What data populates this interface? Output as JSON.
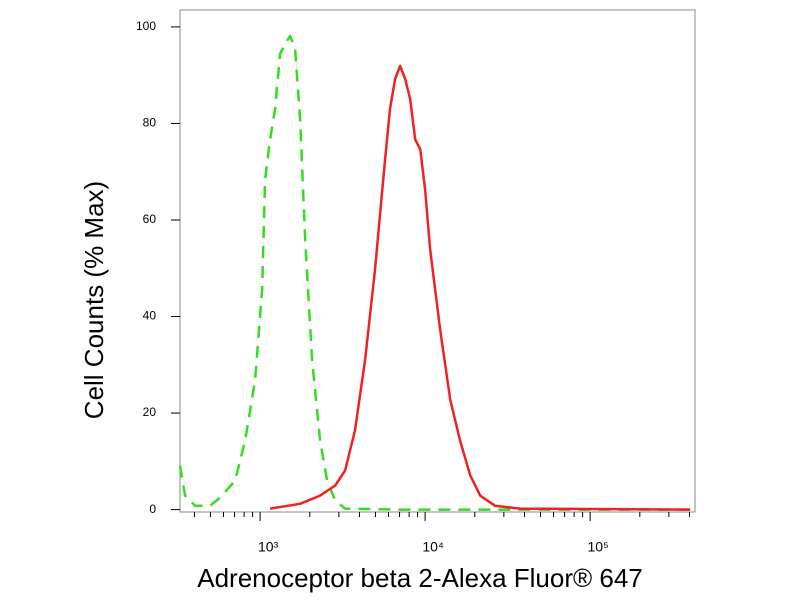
{
  "chart_data": {
    "type": "line",
    "xlabel": "Adrenoceptor beta 2-Alexa Fluor® 647",
    "ylabel": "Cell Counts (% Max)",
    "xscale": "log",
    "xlim": [
      327,
      432000
    ],
    "ylim": [
      -0.5,
      103.5
    ],
    "xticks": [
      {
        "value": 1000,
        "label": "10³"
      },
      {
        "value": 10000,
        "label": "10⁴"
      },
      {
        "value": 100000,
        "label": "10⁵"
      }
    ],
    "xminorticks": [
      400,
      500,
      600,
      700,
      800,
      900,
      2000,
      3000,
      4000,
      5000,
      6000,
      7000,
      8000,
      9000,
      20000,
      30000,
      40000,
      50000,
      60000,
      70000,
      80000,
      90000,
      200000,
      300000,
      400000
    ],
    "yticks": [
      0,
      20,
      40,
      60,
      80,
      100
    ],
    "series": [
      {
        "color": "#33dd22",
        "dash": true,
        "x": [
          327,
          351,
          403,
          498,
          573,
          705,
          811,
          933,
          1028,
          1072,
          1150,
          1233,
          1322,
          1418,
          1520,
          1630,
          1747,
          1875,
          2066,
          2310,
          2548,
          2850,
          3275,
          7050,
          28500,
          403600
        ],
        "values": [
          9.1,
          2.9,
          0.8,
          0.8,
          2.5,
          6,
          14.3,
          26.8,
          45.5,
          68.4,
          76.7,
          83,
          94.4,
          96.5,
          98.1,
          95.4,
          80.9,
          55.9,
          31,
          14.3,
          6,
          1.9,
          0.2,
          0,
          0,
          0
        ]
      },
      {
        "color": "#ee2222",
        "dash": false,
        "x": [
          1150,
          1747,
          2310,
          2850,
          3275,
          3760,
          4325,
          4970,
          5720,
          6130,
          6580,
          7050,
          7570,
          8120,
          8710,
          9350,
          10000,
          10730,
          12350,
          14200,
          16300,
          18770,
          21560,
          26480,
          37640,
          403600
        ],
        "values": [
          0.2,
          1.2,
          2.9,
          5,
          8.1,
          16.4,
          31,
          49.7,
          72.6,
          83,
          89.2,
          91.9,
          89.2,
          85,
          76.7,
          74.6,
          66.3,
          53.8,
          37.2,
          22.7,
          14.3,
          7.1,
          2.9,
          0.8,
          0.2,
          0
        ]
      }
    ]
  }
}
